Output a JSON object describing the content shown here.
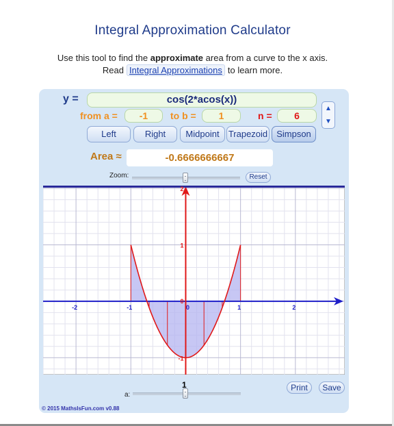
{
  "page": {
    "title": "Integral Approximation Calculator",
    "intro_prefix": "Use this tool to find the",
    "intro_bold": "approximate",
    "intro_suffix": "area from a curve to the x axis.",
    "read_prefix": "Read",
    "read_link": "Integral Approximations",
    "read_suffix": "to learn more."
  },
  "form": {
    "y_label": "y =",
    "expression": "cos(2*acos(x))",
    "from_label": "from a =",
    "from_value": "-1",
    "to_label": "to b =",
    "to_value": "1",
    "n_label": "n =",
    "n_value": "6",
    "up_symbol": "▲",
    "down_symbol": "▼"
  },
  "methods": [
    "Left",
    "Right",
    "Midpoint",
    "Trapezoid",
    "Simpson"
  ],
  "selected_method": "Simpson",
  "result": {
    "area_label": "Area ≈",
    "area_value": "-0.6666666667"
  },
  "controls": {
    "zoom_label": "Zoom:",
    "reset_label": "Reset",
    "print_label": "Print",
    "save_label": "Save",
    "a_label": "a:",
    "a_value": "1",
    "copyright": "© 2015 MathsIsFun.com v0.88"
  },
  "graph": {
    "x_range": [
      -2.6,
      2.9
    ],
    "y_range": [
      -1.3,
      2.05
    ],
    "x_ticks": [
      "-2",
      "-1",
      "0",
      "1",
      "2"
    ],
    "y_ticks": [
      "-1",
      "0",
      "1",
      "2"
    ],
    "interval": [
      -1,
      1
    ],
    "n": 6,
    "colors": {
      "axis": "#1e1ec8",
      "y_axis": "#e01818",
      "curve": "#e01818",
      "fill": "#b4b4f0",
      "grid_major": "#b9b9d2",
      "grid_minor": "#e2e2ee"
    }
  }
}
